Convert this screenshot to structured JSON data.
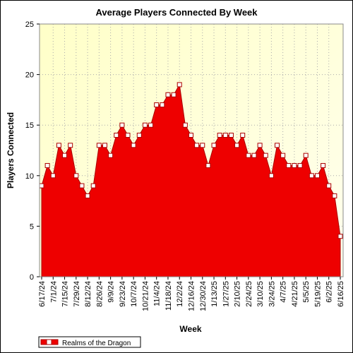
{
  "chart_data": {
    "type": "area",
    "title": "Average Players Connected By Week",
    "xlabel": "Week",
    "ylabel": "Players Connected",
    "ylim": [
      0,
      25
    ],
    "yticks": [
      0,
      5,
      10,
      15,
      20,
      25
    ],
    "grid": true,
    "legend_position": "bottom-left",
    "colors": {
      "fill": "#ee0000",
      "line": "#aa0000",
      "background_top": "#ffffc8",
      "background_bottom": "#ffffe8"
    },
    "x": [
      "6/17/24",
      "6/24/24",
      "7/1/24",
      "7/8/24",
      "7/15/24",
      "7/22/24",
      "7/29/24",
      "8/5/24",
      "8/12/24",
      "8/19/24",
      "8/26/24",
      "9/2/24",
      "9/9/24",
      "9/16/24",
      "9/23/24",
      "9/30/24",
      "10/7/24",
      "10/14/24",
      "10/21/24",
      "10/28/24",
      "11/4/24",
      "11/11/24",
      "11/18/24",
      "11/25/24",
      "12/2/24",
      "12/9/24",
      "12/16/24",
      "12/23/24",
      "12/30/24",
      "1/6/25",
      "1/13/25",
      "1/20/25",
      "1/27/25",
      "2/3/25",
      "2/10/25",
      "2/17/25",
      "2/24/25",
      "3/3/25",
      "3/10/25",
      "3/17/25",
      "3/24/25",
      "3/31/25",
      "4/7/25",
      "4/14/25",
      "4/21/25",
      "4/28/25",
      "5/5/25",
      "5/12/25",
      "5/19/25",
      "5/26/25",
      "6/2/25",
      "6/9/25",
      "6/16/25"
    ],
    "tick_labels": [
      "6/17/24",
      "7/1/24",
      "7/15/24",
      "7/29/24",
      "8/12/24",
      "8/26/24",
      "9/9/24",
      "9/23/24",
      "10/7/24",
      "10/21/24",
      "11/4/24",
      "11/18/24",
      "12/2/24",
      "12/16/24",
      "12/30/24",
      "1/13/25",
      "1/27/25",
      "2/10/25",
      "2/24/25",
      "3/10/25",
      "3/24/25",
      "4/7/25",
      "4/21/25",
      "5/5/25",
      "5/19/25",
      "6/2/25",
      "6/16/25"
    ],
    "series": [
      {
        "name": "Realms of the Dragon",
        "values": [
          9,
          11,
          10,
          13,
          12,
          13,
          10,
          9,
          8,
          9,
          13,
          13,
          12,
          14,
          15,
          14,
          13,
          14,
          15,
          15,
          17,
          17,
          18,
          18,
          19,
          15,
          14,
          13,
          13,
          11,
          13,
          14,
          14,
          14,
          13,
          14,
          12,
          12,
          13,
          12,
          10,
          13,
          12,
          11,
          11,
          11,
          12,
          10,
          10,
          11,
          9,
          8,
          4
        ]
      }
    ]
  }
}
